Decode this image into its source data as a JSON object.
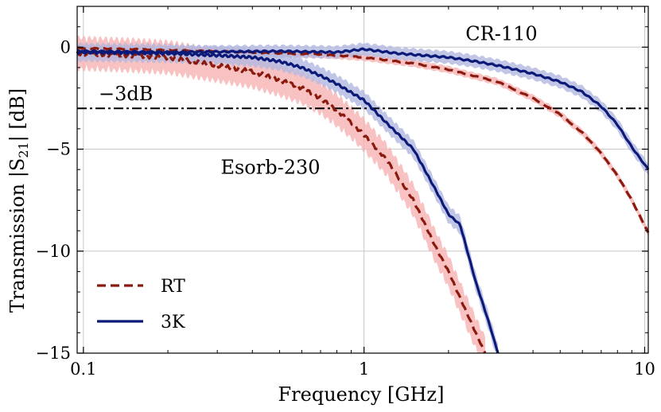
{
  "chart_data": {
    "type": "line",
    "xscale": "log",
    "xlabel": "Frequency [GHz]",
    "ylabel": "Transmission |S21| [dB]",
    "xlim": [
      0.095,
      10.3
    ],
    "ylim": [
      -15,
      2
    ],
    "xticks": [
      {
        "value": 0.1,
        "label": "0.1"
      },
      {
        "value": 1,
        "label": "1"
      },
      {
        "value": 10,
        "label": "10"
      }
    ],
    "yticks": [
      {
        "value": 0,
        "label": "0"
      },
      {
        "value": -5,
        "label": "−5"
      },
      {
        "value": -10,
        "label": "−10"
      },
      {
        "value": -15,
        "label": "−15"
      }
    ],
    "grid": true,
    "legend_position": "bottom-left",
    "reference_line": {
      "y": -3,
      "label": "−3dB",
      "style": "dash-dot"
    },
    "annotations": [
      {
        "text": "CR-110",
        "x": 2.3,
        "y": 0.35
      },
      {
        "text": "Esorb-230",
        "x": 0.52,
        "y": -6.2
      }
    ],
    "colors": {
      "rt": "#8b1a0e",
      "k3": "#0b1a78",
      "rt_band": "#f7b3b3",
      "k3_band": "#b3b8e0"
    },
    "series": [
      {
        "name": "RT",
        "material": "CR-110",
        "style": "dashed",
        "color": "#8b1a0e",
        "x": [
          0.095,
          0.15,
          0.2,
          0.3,
          0.5,
          0.7,
          1.0,
          1.5,
          2.0,
          3.0,
          4.0,
          5.0,
          6.0,
          7.0,
          8.0,
          9.0,
          10.3
        ],
        "y": [
          -0.05,
          -0.1,
          -0.15,
          -0.2,
          -0.3,
          -0.35,
          -0.5,
          -0.8,
          -1.1,
          -1.7,
          -2.5,
          -3.3,
          -4.2,
          -5.2,
          -6.3,
          -7.5,
          -9.1
        ],
        "band": 0.2
      },
      {
        "name": "3K",
        "material": "CR-110",
        "style": "solid",
        "color": "#0b1a78",
        "x": [
          0.095,
          0.2,
          0.5,
          0.8,
          1.0,
          1.3,
          2.0,
          2.5,
          3.0,
          4.0,
          5.0,
          6.0,
          7.0,
          8.0,
          9.0,
          10.3
        ],
        "y": [
          -0.2,
          -0.25,
          -0.2,
          -0.25,
          -0.1,
          -0.3,
          -0.5,
          -0.7,
          -0.9,
          -1.3,
          -1.7,
          -2.2,
          -2.9,
          -3.8,
          -4.9,
          -6.0
        ],
        "band": 0.35
      },
      {
        "name": "RT",
        "material": "Esorb-230",
        "style": "dashed",
        "color": "#8b1a0e",
        "x": [
          0.095,
          0.15,
          0.2,
          0.3,
          0.4,
          0.5,
          0.6,
          0.7,
          0.8,
          0.9,
          1.0,
          1.2,
          1.5,
          1.8,
          2.0,
          2.2,
          2.5,
          2.7
        ],
        "y": [
          -0.3,
          -0.4,
          -0.5,
          -0.9,
          -1.2,
          -1.6,
          -2.0,
          -2.5,
          -3.1,
          -3.7,
          -4.3,
          -5.5,
          -7.5,
          -9.8,
          -11.0,
          -12.3,
          -14.0,
          -15.0
        ],
        "band": 0.9
      },
      {
        "name": "3K",
        "material": "Esorb-230",
        "style": "solid",
        "color": "#0b1a78",
        "x": [
          0.095,
          0.2,
          0.3,
          0.4,
          0.5,
          0.6,
          0.7,
          0.8,
          1.0,
          1.2,
          1.5,
          1.8,
          2.0,
          2.2,
          2.5,
          2.8,
          3.0
        ],
        "y": [
          -0.25,
          -0.3,
          -0.4,
          -0.5,
          -0.7,
          -1.0,
          -1.4,
          -1.8,
          -2.6,
          -3.7,
          -5.0,
          -7.0,
          -8.2,
          -8.7,
          -11.5,
          -13.6,
          -15.0
        ],
        "band": 0.5
      }
    ],
    "legend": [
      {
        "label": "RT",
        "style": "dashed",
        "color": "#8b1a0e"
      },
      {
        "label": "3K",
        "style": "solid",
        "color": "#0b1a78"
      }
    ]
  }
}
